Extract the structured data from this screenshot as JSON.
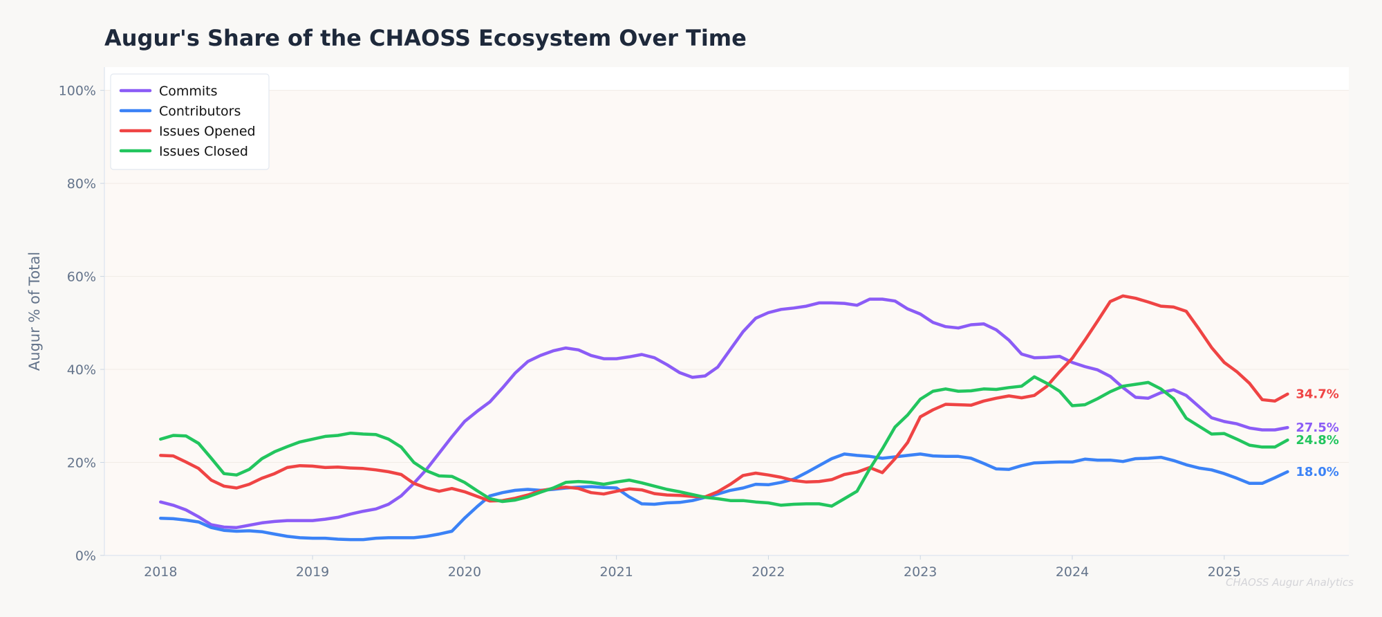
{
  "chart_data": {
    "type": "line",
    "title": "Augur's Share of the CHAOSS Ecosystem Over Time",
    "ylabel": "Augur % of Total",
    "xlabel": "",
    "watermark": "CHAOSS Augur Analytics",
    "xlim": [
      2017.63,
      2025.82
    ],
    "ylim": [
      0,
      105
    ],
    "x_ticks": [
      2018,
      2019,
      2020,
      2021,
      2022,
      2023,
      2024,
      2025
    ],
    "x_tick_labels": [
      "2018",
      "2019",
      "2020",
      "2021",
      "2022",
      "2023",
      "2024",
      "2025"
    ],
    "y_ticks": [
      0,
      20,
      40,
      60,
      80,
      100
    ],
    "y_tick_labels": [
      "0%",
      "20%",
      "40%",
      "60%",
      "80%",
      "100%"
    ],
    "grid": true,
    "legend_position": "top-left",
    "series": [
      {
        "name": "Commits",
        "color": "#8b5cf6",
        "end_label": "27.5%",
        "values": [
          11.5,
          10.8,
          9.8,
          8.3,
          6.6,
          6.1,
          6.0,
          6.5,
          7.0,
          7.3,
          7.5,
          7.5,
          7.5,
          7.8,
          8.2,
          8.9,
          9.5,
          10.0,
          11.0,
          12.8,
          15.5,
          18.5,
          22.0,
          25.5,
          28.8,
          31.0,
          33.0,
          36.0,
          39.2,
          41.7,
          43.0,
          44.0,
          44.6,
          44.2,
          43.0,
          42.3,
          42.3,
          42.7,
          43.2,
          42.5,
          41.0,
          39.3,
          38.3,
          38.6,
          40.5,
          44.3,
          48.1,
          51.0,
          52.2,
          52.9,
          53.2,
          53.6,
          54.3,
          54.3,
          54.2,
          53.8,
          55.1,
          55.1,
          54.7,
          53.0,
          51.9,
          50.1,
          49.2,
          48.9,
          49.6,
          49.8,
          48.5,
          46.3,
          43.3,
          42.5,
          42.6,
          42.8,
          41.5,
          40.6,
          39.9,
          38.5,
          36.1,
          34.0,
          33.8,
          35.0,
          35.6,
          34.4,
          32.0,
          29.6,
          28.8,
          28.3,
          27.4,
          27.0,
          27.0,
          27.5
        ]
      },
      {
        "name": "Contributors",
        "color": "#3b82f6",
        "end_label": "18.0%",
        "values": [
          8.0,
          7.9,
          7.6,
          7.2,
          6.0,
          5.4,
          5.2,
          5.3,
          5.1,
          4.6,
          4.1,
          3.8,
          3.7,
          3.7,
          3.5,
          3.4,
          3.4,
          3.7,
          3.8,
          3.8,
          3.8,
          4.1,
          4.6,
          5.2,
          8.0,
          10.5,
          12.8,
          13.5,
          14.0,
          14.2,
          14.0,
          14.2,
          14.5,
          14.7,
          14.8,
          14.6,
          14.5,
          12.6,
          11.1,
          11.0,
          11.3,
          11.4,
          11.8,
          12.5,
          13.2,
          14.0,
          14.5,
          15.3,
          15.2,
          15.7,
          16.4,
          17.8,
          19.3,
          20.8,
          21.8,
          21.5,
          21.3,
          20.9,
          21.2,
          21.5,
          21.8,
          21.4,
          21.3,
          21.3,
          20.9,
          19.8,
          18.6,
          18.5,
          19.3,
          19.9,
          20.0,
          20.1,
          20.1,
          20.7,
          20.5,
          20.5,
          20.2,
          20.8,
          20.9,
          21.1,
          20.4,
          19.5,
          18.8,
          18.4,
          17.6,
          16.6,
          15.5,
          15.5,
          16.7,
          18.0
        ]
      },
      {
        "name": "Issues Opened",
        "color": "#ef4444",
        "end_label": "34.7%",
        "values": [
          21.5,
          21.4,
          20.1,
          18.7,
          16.2,
          14.9,
          14.5,
          15.3,
          16.6,
          17.6,
          18.9,
          19.3,
          19.2,
          18.9,
          19.0,
          18.8,
          18.7,
          18.4,
          18.0,
          17.4,
          15.5,
          14.5,
          13.8,
          14.4,
          13.7,
          12.7,
          11.7,
          11.8,
          12.3,
          13.0,
          13.9,
          14.4,
          14.7,
          14.4,
          13.5,
          13.2,
          13.8,
          14.3,
          14.1,
          13.3,
          13.0,
          12.9,
          12.7,
          12.6,
          13.7,
          15.3,
          17.2,
          17.7,
          17.3,
          16.8,
          16.1,
          15.8,
          15.9,
          16.3,
          17.4,
          17.9,
          18.9,
          17.8,
          20.8,
          24.3,
          29.8,
          31.3,
          32.5,
          32.4,
          32.3,
          33.2,
          33.8,
          34.3,
          33.9,
          34.4,
          36.4,
          39.5,
          42.4,
          46.3,
          50.4,
          54.6,
          55.8,
          55.3,
          54.5,
          53.6,
          53.4,
          52.5,
          48.7,
          44.7,
          41.5,
          39.5,
          37.0,
          33.5,
          33.2,
          34.7
        ]
      },
      {
        "name": "Issues Closed",
        "color": "#22c55e",
        "end_label": "24.8%",
        "values": [
          25.0,
          25.8,
          25.7,
          24.1,
          20.9,
          17.6,
          17.3,
          18.5,
          20.8,
          22.3,
          23.4,
          24.4,
          25.0,
          25.6,
          25.8,
          26.3,
          26.1,
          26.0,
          25.0,
          23.3,
          20.0,
          18.2,
          17.1,
          17.0,
          15.7,
          13.9,
          12.2,
          11.6,
          11.9,
          12.6,
          13.6,
          14.5,
          15.7,
          15.9,
          15.7,
          15.3,
          15.8,
          16.2,
          15.6,
          14.9,
          14.2,
          13.7,
          13.1,
          12.5,
          12.2,
          11.8,
          11.8,
          11.5,
          11.3,
          10.8,
          11.0,
          11.1,
          11.1,
          10.6,
          12.2,
          13.8,
          18.6,
          22.9,
          27.6,
          30.2,
          33.6,
          35.3,
          35.8,
          35.3,
          35.4,
          35.8,
          35.7,
          36.1,
          36.4,
          38.4,
          37.0,
          35.3,
          32.2,
          32.4,
          33.7,
          35.2,
          36.4,
          36.8,
          37.2,
          35.8,
          33.7,
          29.5,
          27.8,
          26.1,
          26.2,
          25.0,
          23.7,
          23.3,
          23.3,
          24.8
        ]
      }
    ]
  }
}
